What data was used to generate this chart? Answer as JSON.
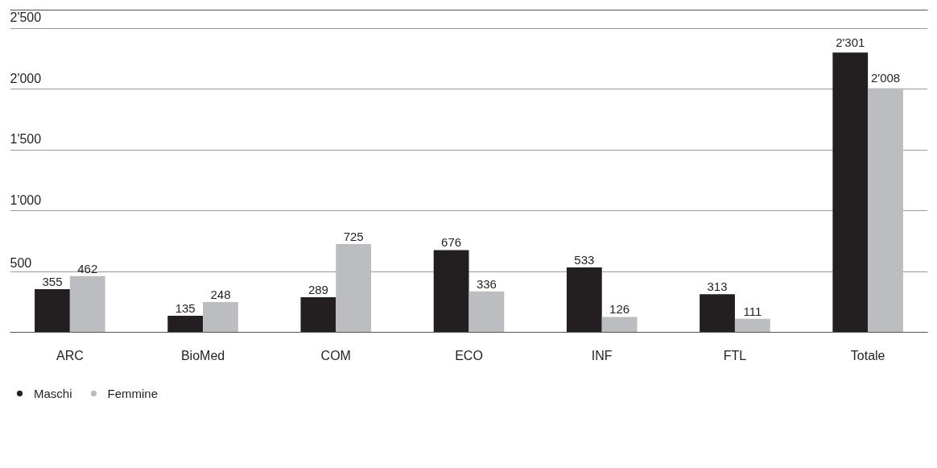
{
  "chart_data": {
    "type": "bar",
    "categories": [
      "ARC",
      "BioMed",
      "COM",
      "ECO",
      "INF",
      "FTL",
      "Totale"
    ],
    "series": [
      {
        "name": "Maschi",
        "color": "#231f20",
        "values": [
          355,
          135,
          289,
          676,
          533,
          313,
          2301
        ]
      },
      {
        "name": "Femmine",
        "color": "#bcbdc0",
        "values": [
          462,
          248,
          725,
          336,
          126,
          111,
          2008
        ]
      }
    ],
    "ylim": [
      0,
      2650
    ],
    "yticks": [
      {
        "value": 500,
        "label": "500"
      },
      {
        "value": 1000,
        "label": "1'000"
      },
      {
        "value": 1500,
        "label": "1'500"
      },
      {
        "value": 2000,
        "label": "2'000"
      },
      {
        "value": 2500,
        "label": "2'500"
      }
    ],
    "value_labels": [
      [
        "355",
        "135",
        "289",
        "676",
        "533",
        "313",
        "2'301"
      ],
      [
        "462",
        "248",
        "725",
        "336",
        "126",
        "111",
        "2'008"
      ]
    ],
    "grid": "y",
    "legend": "bottom left",
    "marker": "circle"
  }
}
